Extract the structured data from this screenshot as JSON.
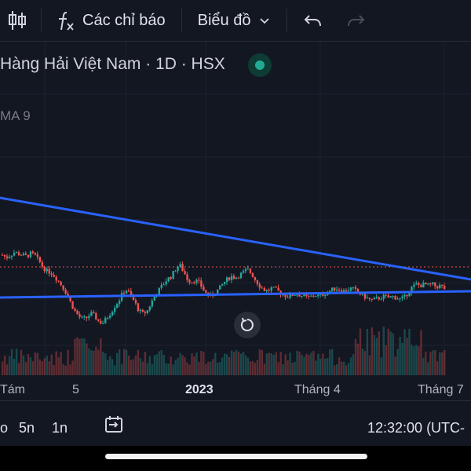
{
  "toolbar": {
    "indicators_label": "Các chỉ báo",
    "chart_type_label": "Biểu đồ"
  },
  "chart": {
    "title": "Hàng Hải Việt Nam · 1D · HSX",
    "indicator_label": "MA 9",
    "x_labels": [
      "Tám",
      "5",
      "2023",
      "Tháng 4",
      "Tháng 7"
    ],
    "colors": {
      "up": "#26a69a",
      "down": "#ef5350",
      "trendline": "#2962ff",
      "background": "#131722"
    }
  },
  "bottom": {
    "timeframes": [
      "o",
      "5n",
      "1n"
    ],
    "clock": "12:32:00 (UTC-"
  },
  "chart_data": {
    "type": "candlestick",
    "title": "Hàng Hải Việt Nam · 1D · HSX",
    "x_tick_labels": [
      "Tám",
      "5",
      "2023",
      "Tháng 4",
      "Tháng 7"
    ],
    "trend": [
      0.56,
      0.54,
      0.56,
      0.58,
      0.57,
      0.56,
      0.55,
      0.57,
      0.56,
      0.52,
      0.47,
      0.44,
      0.43,
      0.4,
      0.36,
      0.32,
      0.27,
      0.2,
      0.14,
      0.1,
      0.08,
      0.09,
      0.12,
      0.1,
      0.06,
      0.05,
      0.09,
      0.13,
      0.18,
      0.22,
      0.28,
      0.3,
      0.25,
      0.2,
      0.14,
      0.12,
      0.14,
      0.2,
      0.26,
      0.3,
      0.34,
      0.38,
      0.4,
      0.45,
      0.49,
      0.44,
      0.38,
      0.36,
      0.37,
      0.35,
      0.3,
      0.26,
      0.25,
      0.28,
      0.31,
      0.35,
      0.38,
      0.4,
      0.39,
      0.41,
      0.43,
      0.45,
      0.42,
      0.37,
      0.33,
      0.3,
      0.29,
      0.31,
      0.3,
      0.28,
      0.26,
      0.25,
      0.26,
      0.27,
      0.26,
      0.25,
      0.24,
      0.25,
      0.26,
      0.25,
      0.27,
      0.28,
      0.3,
      0.31,
      0.3,
      0.29,
      0.3,
      0.31,
      0.29,
      0.27,
      0.25,
      0.23,
      0.22,
      0.23,
      0.24,
      0.25,
      0.24,
      0.25,
      0.24,
      0.23,
      0.24,
      0.28,
      0.32,
      0.34,
      0.33,
      0.34,
      0.33,
      0.34,
      0.32,
      0.33,
      0.31
    ]
  }
}
